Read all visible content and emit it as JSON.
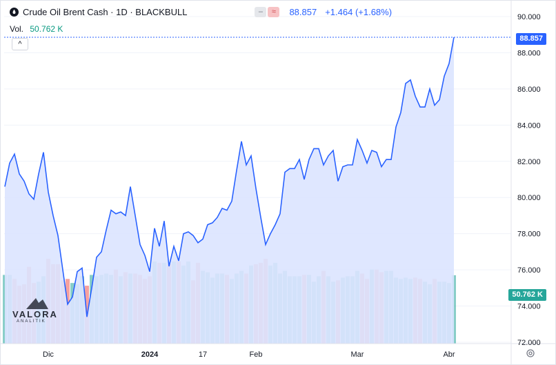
{
  "header": {
    "title": "Crude Oil Brent Cash · 1D · BLACKBULL",
    "last_price": "88.857",
    "change": "+1.464 (+1.68%)",
    "btn_minus": "–",
    "btn_approx": "≈"
  },
  "volume": {
    "label": "Vol.",
    "value": "50.762 K"
  },
  "collapse_label": "^",
  "logo": {
    "name": "VALORA",
    "sub": "ANALITIK"
  },
  "colors": {
    "line": "#2962ff",
    "area": "#dbe4ff",
    "vol_up": "#26a69a",
    "vol_down": "#ef5350"
  },
  "chart_data": {
    "type": "line",
    "title": "Crude Oil Brent Cash · 1D · BLACKBULL",
    "ylim": [
      72,
      90
    ],
    "y_ticks": [
      "90.000",
      "88.000",
      "86.000",
      "84.000",
      "82.000",
      "80.000",
      "78.000",
      "76.000",
      "74.000",
      "72.000"
    ],
    "x_labels": [
      "Dic",
      "2024",
      "17",
      "Feb",
      "Mar",
      "Abr"
    ],
    "last_price_label": "88.857",
    "last_volume_label": "50.762 K",
    "series": [
      {
        "values": [
          80.6,
          81.9,
          82.4,
          81.3,
          80.9,
          80.2,
          79.9,
          81.3,
          82.5,
          80.3,
          79.0,
          77.9,
          76.0,
          74.1,
          74.5,
          75.9,
          76.1,
          73.4,
          75.0,
          76.7,
          77.0,
          78.2,
          79.3,
          79.1,
          79.2,
          79.0,
          80.6,
          79.0,
          77.4,
          76.8,
          75.9,
          78.3,
          77.3,
          78.7,
          76.2,
          77.3,
          76.5,
          78.0,
          78.1,
          77.9,
          77.5,
          77.7,
          78.5,
          78.6,
          78.9,
          79.4,
          79.3,
          79.8,
          81.5,
          83.1,
          81.8,
          82.3,
          80.5,
          78.9,
          77.4,
          78.0,
          78.5,
          79.1,
          81.4,
          81.6,
          81.6,
          82.1,
          81.0,
          82.1,
          82.7,
          82.7,
          81.8,
          82.3,
          82.6,
          80.9,
          81.7,
          81.8,
          81.8,
          83.2,
          82.6,
          81.9,
          82.6,
          82.5,
          81.7,
          82.1,
          82.1,
          83.9,
          84.7,
          86.3,
          86.5,
          85.6,
          85.0,
          85.0,
          86.0,
          85.1,
          85.4,
          86.7,
          87.4,
          88.857
        ]
      }
    ],
    "volume_values": [
      51,
      51,
      48,
      43,
      44,
      57,
      45,
      46,
      50,
      63,
      59,
      59,
      47,
      48,
      45,
      44,
      50,
      43,
      51,
      50,
      51,
      52,
      51,
      55,
      50,
      53,
      52,
      52,
      51,
      48,
      50,
      61,
      60,
      60,
      59,
      61,
      61,
      58,
      61,
      47,
      60,
      54,
      53,
      49,
      52,
      52,
      51,
      48,
      52,
      54,
      52,
      58,
      59,
      60,
      63,
      58,
      60,
      52,
      54,
      50,
      50,
      50,
      51,
      51,
      46,
      50,
      54,
      50,
      46,
      47,
      49,
      50,
      50,
      54,
      52,
      48,
      55,
      55,
      53,
      54,
      54,
      49,
      48,
      49,
      48,
      49,
      48,
      46,
      44,
      48,
      46,
      46,
      45,
      50.762
    ],
    "volume_up": [
      1,
      1,
      0,
      0,
      0,
      0,
      0,
      1,
      1,
      0,
      0,
      0,
      0,
      0,
      1,
      1,
      1,
      0,
      1,
      1,
      1,
      1,
      1,
      0,
      1,
      0,
      1,
      0,
      0,
      0,
      0,
      1,
      0,
      1,
      0,
      1,
      0,
      1,
      1,
      0,
      0,
      1,
      1,
      1,
      1,
      1,
      0,
      1,
      1,
      1,
      0,
      1,
      0,
      0,
      0,
      1,
      1,
      1,
      1,
      1,
      1,
      1,
      0,
      1,
      1,
      1,
      0,
      1,
      1,
      0,
      1,
      1,
      1,
      1,
      0,
      0,
      1,
      0,
      0,
      1,
      1,
      1,
      1,
      1,
      1,
      0,
      0,
      1,
      1,
      0,
      1,
      1,
      1,
      1
    ]
  }
}
